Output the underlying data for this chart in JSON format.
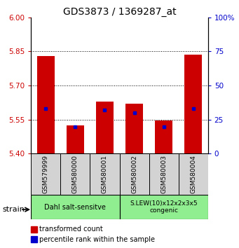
{
  "title": "GDS3873 / 1369287_at",
  "samples": [
    "GSM579999",
    "GSM580000",
    "GSM580001",
    "GSM580002",
    "GSM580003",
    "GSM580004"
  ],
  "red_values": [
    5.83,
    5.525,
    5.63,
    5.62,
    5.545,
    5.835
  ],
  "blue_values_pct": [
    33,
    20,
    32,
    30,
    20,
    33
  ],
  "ylim_left": [
    5.4,
    6.0
  ],
  "ylim_right": [
    0,
    100
  ],
  "yticks_left": [
    5.4,
    5.55,
    5.7,
    5.85,
    6.0
  ],
  "yticks_right": [
    0,
    25,
    50,
    75,
    100
  ],
  "grid_lines": [
    5.55,
    5.7,
    5.85
  ],
  "bar_bottom": 5.4,
  "bar_width": 0.6,
  "red_color": "#cc0000",
  "blue_color": "#0000cc",
  "group1_label": "Dahl salt-sensitve",
  "group2_label": "S.LEW(10)x12x2x3x5\ncongenic",
  "group1_color": "#90ee90",
  "group2_color": "#90ee90",
  "gray_color": "#d3d3d3",
  "strain_label": "strain",
  "legend1_label": "transformed count",
  "legend2_label": "percentile rank within the sample",
  "xticklabel_fontsize": 6.5,
  "title_fontsize": 10
}
